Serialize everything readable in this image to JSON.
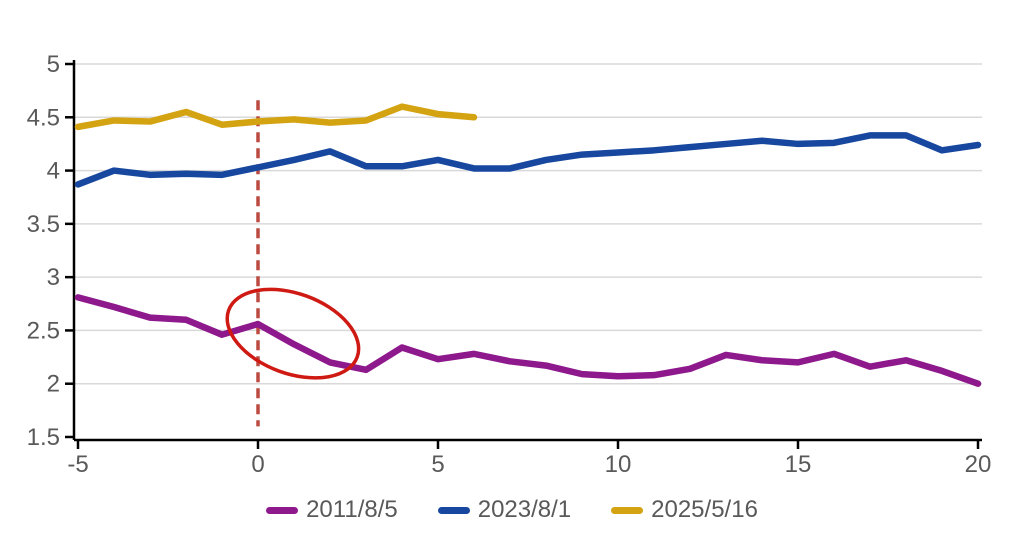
{
  "chart_data": {
    "type": "line",
    "title": "",
    "xlabel": "",
    "ylabel": "",
    "xlim": [
      -5,
      20
    ],
    "ylim": [
      1.5,
      5
    ],
    "x_ticks": [
      -5,
      0,
      5,
      10,
      15,
      20
    ],
    "y_ticks": [
      1.5,
      2,
      2.5,
      3,
      3.5,
      4,
      4.5,
      5
    ],
    "grid": "horizontal",
    "legend_position": "bottom",
    "x": [
      -5,
      -4,
      -3,
      -2,
      -1,
      0,
      1,
      2,
      3,
      4,
      5,
      6,
      7,
      8,
      9,
      10,
      11,
      12,
      13,
      14,
      15,
      16,
      17,
      18,
      19,
      20
    ],
    "series": [
      {
        "name": "2011/8/5",
        "color": "#8e198d",
        "values": [
          2.81,
          2.72,
          2.62,
          2.6,
          2.46,
          2.56,
          2.37,
          2.2,
          2.13,
          2.34,
          2.23,
          2.28,
          2.21,
          2.17,
          2.09,
          2.07,
          2.08,
          2.14,
          2.27,
          2.22,
          2.2,
          2.28,
          2.16,
          2.22,
          2.12,
          2.0
        ]
      },
      {
        "name": "2023/8/1",
        "color": "#17479e",
        "values": [
          3.87,
          4.0,
          3.96,
          3.97,
          3.96,
          4.03,
          4.1,
          4.18,
          4.04,
          4.04,
          4.1,
          4.02,
          4.02,
          4.1,
          4.15,
          4.17,
          4.19,
          4.22,
          4.25,
          4.28,
          4.25,
          4.26,
          4.33,
          4.33,
          4.19,
          4.24
        ]
      },
      {
        "name": "2025/5/16",
        "color": "#d4a312",
        "values": [
          4.41,
          4.47,
          4.46,
          4.55,
          4.43,
          4.46,
          4.48,
          4.45,
          4.47,
          4.6,
          4.53,
          4.5
        ]
      }
    ],
    "annotations": {
      "vline": {
        "x": 0,
        "from_value": 4.66,
        "to_value": 1.6,
        "color": "#bc4a41",
        "style": "dashed"
      },
      "ellipse": {
        "center_x": 0.97,
        "center_value": 2.47,
        "radius_x_units": 1.9,
        "radius_y_values": 0.375,
        "rotation_deg": 20,
        "color": "#cf1a14"
      }
    },
    "colors": {
      "axis": "#000000",
      "gridline": "#d9d9d9",
      "tick_label": "#595959"
    }
  },
  "legend": {
    "items": [
      {
        "label": "2011/8/5"
      },
      {
        "label": "2023/8/1"
      },
      {
        "label": "2025/5/16"
      }
    ]
  }
}
